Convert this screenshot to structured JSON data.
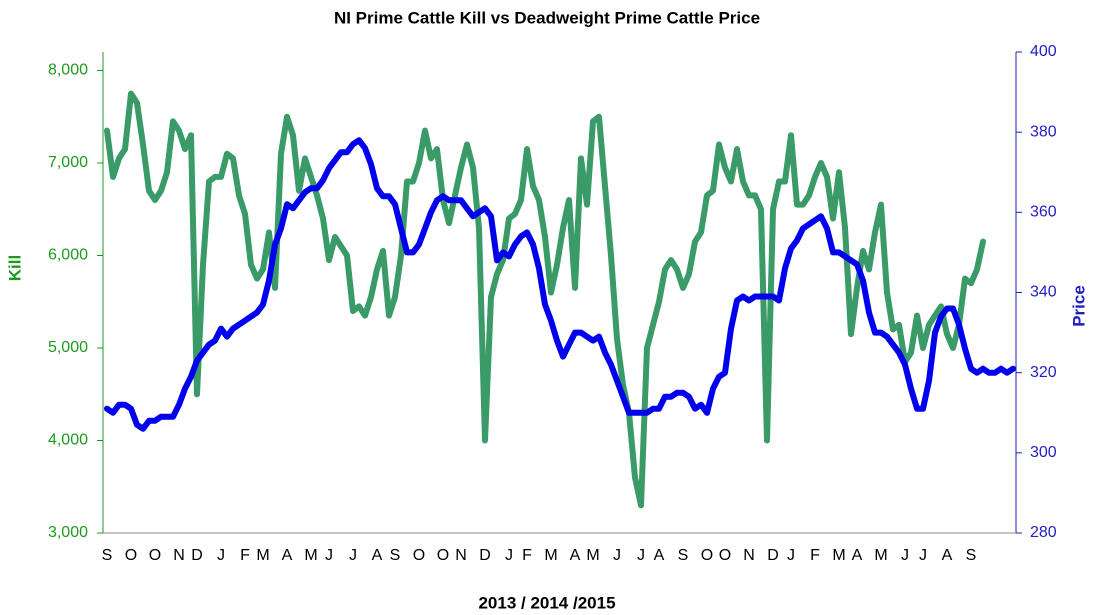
{
  "chart_data": {
    "type": "line",
    "title": "NI Prime Cattle Kill vs Deadweight Prime Cattle Price",
    "xlabel": "2013 / 2014 /2015",
    "ylabel": "Kill",
    "y2label": "Price",
    "categories": [
      "S",
      null,
      null,
      null,
      "O",
      null,
      null,
      null,
      "O",
      null,
      null,
      null,
      "N",
      null,
      null,
      "D",
      null,
      null,
      null,
      "J",
      null,
      null,
      null,
      "F",
      null,
      null,
      "M",
      null,
      null,
      null,
      "A",
      null,
      null,
      null,
      "M",
      null,
      null,
      "J",
      null,
      null,
      null,
      "J",
      null,
      null,
      null,
      "A",
      null,
      null,
      "S",
      null,
      null,
      null,
      "O",
      null,
      null,
      null,
      "O",
      null,
      null,
      "N",
      null,
      null,
      null,
      "D",
      null,
      null,
      null,
      "J",
      null,
      null,
      "F",
      null,
      null,
      null,
      "M",
      null,
      null,
      null,
      "A",
      null,
      null,
      "M",
      null,
      null,
      null,
      "J",
      null,
      null,
      null,
      "J",
      null,
      null,
      "A",
      null,
      null,
      null,
      "S",
      null,
      null,
      null,
      "O",
      null,
      null,
      "O",
      null,
      null,
      null,
      "N",
      null,
      null,
      null,
      "D",
      null,
      null,
      "J",
      null,
      null,
      null,
      "F",
      null,
      null,
      null,
      "M",
      null,
      null,
      "A",
      null,
      null,
      null,
      "M",
      null,
      null,
      null,
      "J",
      null,
      null,
      "J",
      null,
      null,
      null,
      "A",
      null,
      null,
      null,
      "S",
      null,
      null,
      null,
      null,
      null,
      null,
      null
    ],
    "series": [
      {
        "color": "#3a9a68",
        "values": [
          7350,
          6850,
          7050,
          7150,
          7750,
          7650,
          7200,
          6700,
          6600,
          6700,
          6900,
          7450,
          7350,
          7150,
          7300,
          4500,
          5900,
          6800,
          6850,
          6850,
          7100,
          7050,
          6650,
          6450,
          5900,
          5750,
          5850,
          6250,
          5650,
          7100,
          7500,
          7300,
          6700,
          7050,
          6850,
          6650,
          6400,
          5950,
          6200,
          6100,
          6000,
          5400,
          5450,
          5350,
          5550,
          5850,
          6050,
          5350,
          5550,
          6000,
          6800,
          6800,
          7000,
          7350,
          7050,
          7150,
          6600,
          6350,
          6650,
          6950,
          7200,
          6950,
          6300,
          4000,
          5550,
          5800,
          5950,
          6400,
          6450,
          6600,
          7150,
          6750,
          6600,
          6200,
          5600,
          5900,
          6300,
          6600,
          5650,
          7050,
          6550,
          7450,
          7500,
          6750,
          6000,
          5100,
          4600,
          4300,
          3600,
          3300,
          5000,
          5250,
          5500,
          5850,
          5950,
          5850,
          5650,
          5800,
          6150,
          6250,
          6650,
          6700,
          7200,
          6950,
          6800,
          7150,
          6800,
          6650,
          6650,
          6500,
          4000,
          6500,
          6800,
          6800,
          7300,
          6550,
          6550,
          6650,
          6850,
          7000,
          6850,
          6400,
          6900,
          6300,
          5150,
          5650,
          6050,
          5850,
          6250,
          6550,
          5600,
          5200,
          5250,
          4850,
          4950,
          5350,
          5000,
          5250,
          5350,
          5450,
          5150,
          5000,
          5250,
          5750,
          5700,
          5850,
          6150,
          null,
          null,
          null,
          null,
          null
        ]
      },
      {
        "color": "#0000ee",
        "axis": "y2",
        "values": [
          311,
          310,
          312,
          312,
          311,
          307,
          306,
          308,
          308,
          309,
          309,
          309,
          312,
          316,
          319,
          323,
          325,
          327,
          328,
          331,
          329,
          331,
          332,
          333,
          334,
          335,
          337,
          343,
          352,
          356,
          362,
          361,
          363,
          365,
          366,
          366,
          368,
          371,
          373,
          375,
          375,
          377,
          378,
          376,
          372,
          366,
          364,
          364,
          362,
          356,
          350,
          350,
          352,
          356,
          360,
          363,
          364,
          363,
          363,
          363,
          361,
          359,
          360,
          361,
          359,
          348,
          350,
          349,
          352,
          354,
          355,
          352,
          346,
          337,
          333,
          328,
          324,
          327,
          330,
          330,
          329,
          328,
          329,
          325,
          322,
          318,
          314,
          310,
          310,
          310,
          310,
          311,
          311,
          314,
          314,
          315,
          315,
          314,
          311,
          312,
          310,
          316,
          319,
          320,
          331,
          338,
          339,
          338,
          339,
          339,
          339,
          339,
          338,
          346,
          351,
          353,
          356,
          357,
          358,
          359,
          356,
          350,
          350,
          349,
          348,
          347,
          343,
          335,
          330,
          330,
          329,
          327,
          325,
          322,
          316,
          311,
          311,
          318,
          330,
          334,
          336,
          336,
          332,
          326,
          321,
          320,
          321,
          320,
          320,
          321,
          320,
          321
        ]
      }
    ],
    "ylim": [
      3000,
      8200
    ],
    "yticks": [
      {
        "value": 3000,
        "label": "3,000"
      },
      {
        "value": 4000,
        "label": "4,000"
      },
      {
        "value": 5000,
        "label": "5,000"
      },
      {
        "value": 6000,
        "label": "6,000"
      },
      {
        "value": 7000,
        "label": "7,000"
      },
      {
        "value": 8000,
        "label": "8,000"
      }
    ],
    "y2lim": [
      280,
      400
    ],
    "y2ticks": [
      280,
      300,
      320,
      340,
      360,
      380,
      400
    ],
    "grid": false
  }
}
